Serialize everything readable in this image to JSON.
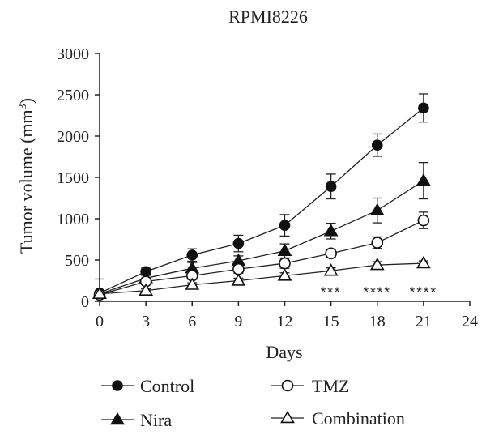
{
  "chart_data": {
    "type": "line",
    "title": "RPMI8226",
    "xlabel": "Days",
    "ylabel": "Tumor volume (mm",
    "ylabel_superscript": "3",
    "ylabel_suffix": ")",
    "xlim": [
      0,
      24
    ],
    "ylim": [
      0,
      3000
    ],
    "x_ticks": [
      0,
      3,
      6,
      9,
      12,
      15,
      18,
      21,
      24
    ],
    "y_ticks": [
      0,
      500,
      1000,
      1500,
      2000,
      2500,
      3000
    ],
    "x": [
      0,
      3,
      6,
      9,
      12,
      15,
      18,
      21
    ],
    "grid": false,
    "legend_position": "bottom",
    "series": [
      {
        "name": "Control",
        "marker": "filled-circle",
        "values": [
          100,
          360,
          560,
          700,
          920,
          1390,
          1890,
          2340
        ],
        "errors": [
          170,
          40,
          75,
          100,
          130,
          150,
          135,
          170
        ]
      },
      {
        "name": "Nira",
        "marker": "filled-triangle",
        "values": [
          90,
          280,
          400,
          490,
          610,
          850,
          1100,
          1460
        ],
        "errors": [
          20,
          35,
          70,
          60,
          85,
          95,
          150,
          220
        ]
      },
      {
        "name": "TMZ",
        "marker": "open-circle",
        "values": [
          80,
          240,
          310,
          390,
          460,
          580,
          710,
          980
        ],
        "errors": [
          20,
          30,
          45,
          50,
          60,
          45,
          70,
          100
        ]
      },
      {
        "name": "Combination",
        "marker": "open-triangle",
        "values": [
          90,
          130,
          200,
          250,
          310,
          370,
          440,
          460
        ],
        "errors": [
          20,
          20,
          25,
          30,
          35,
          35,
          40,
          30
        ]
      }
    ],
    "annotations": [
      {
        "x": 15,
        "text": "***"
      },
      {
        "x": 18,
        "text": "****"
      },
      {
        "x": 21,
        "text": "****"
      }
    ]
  }
}
